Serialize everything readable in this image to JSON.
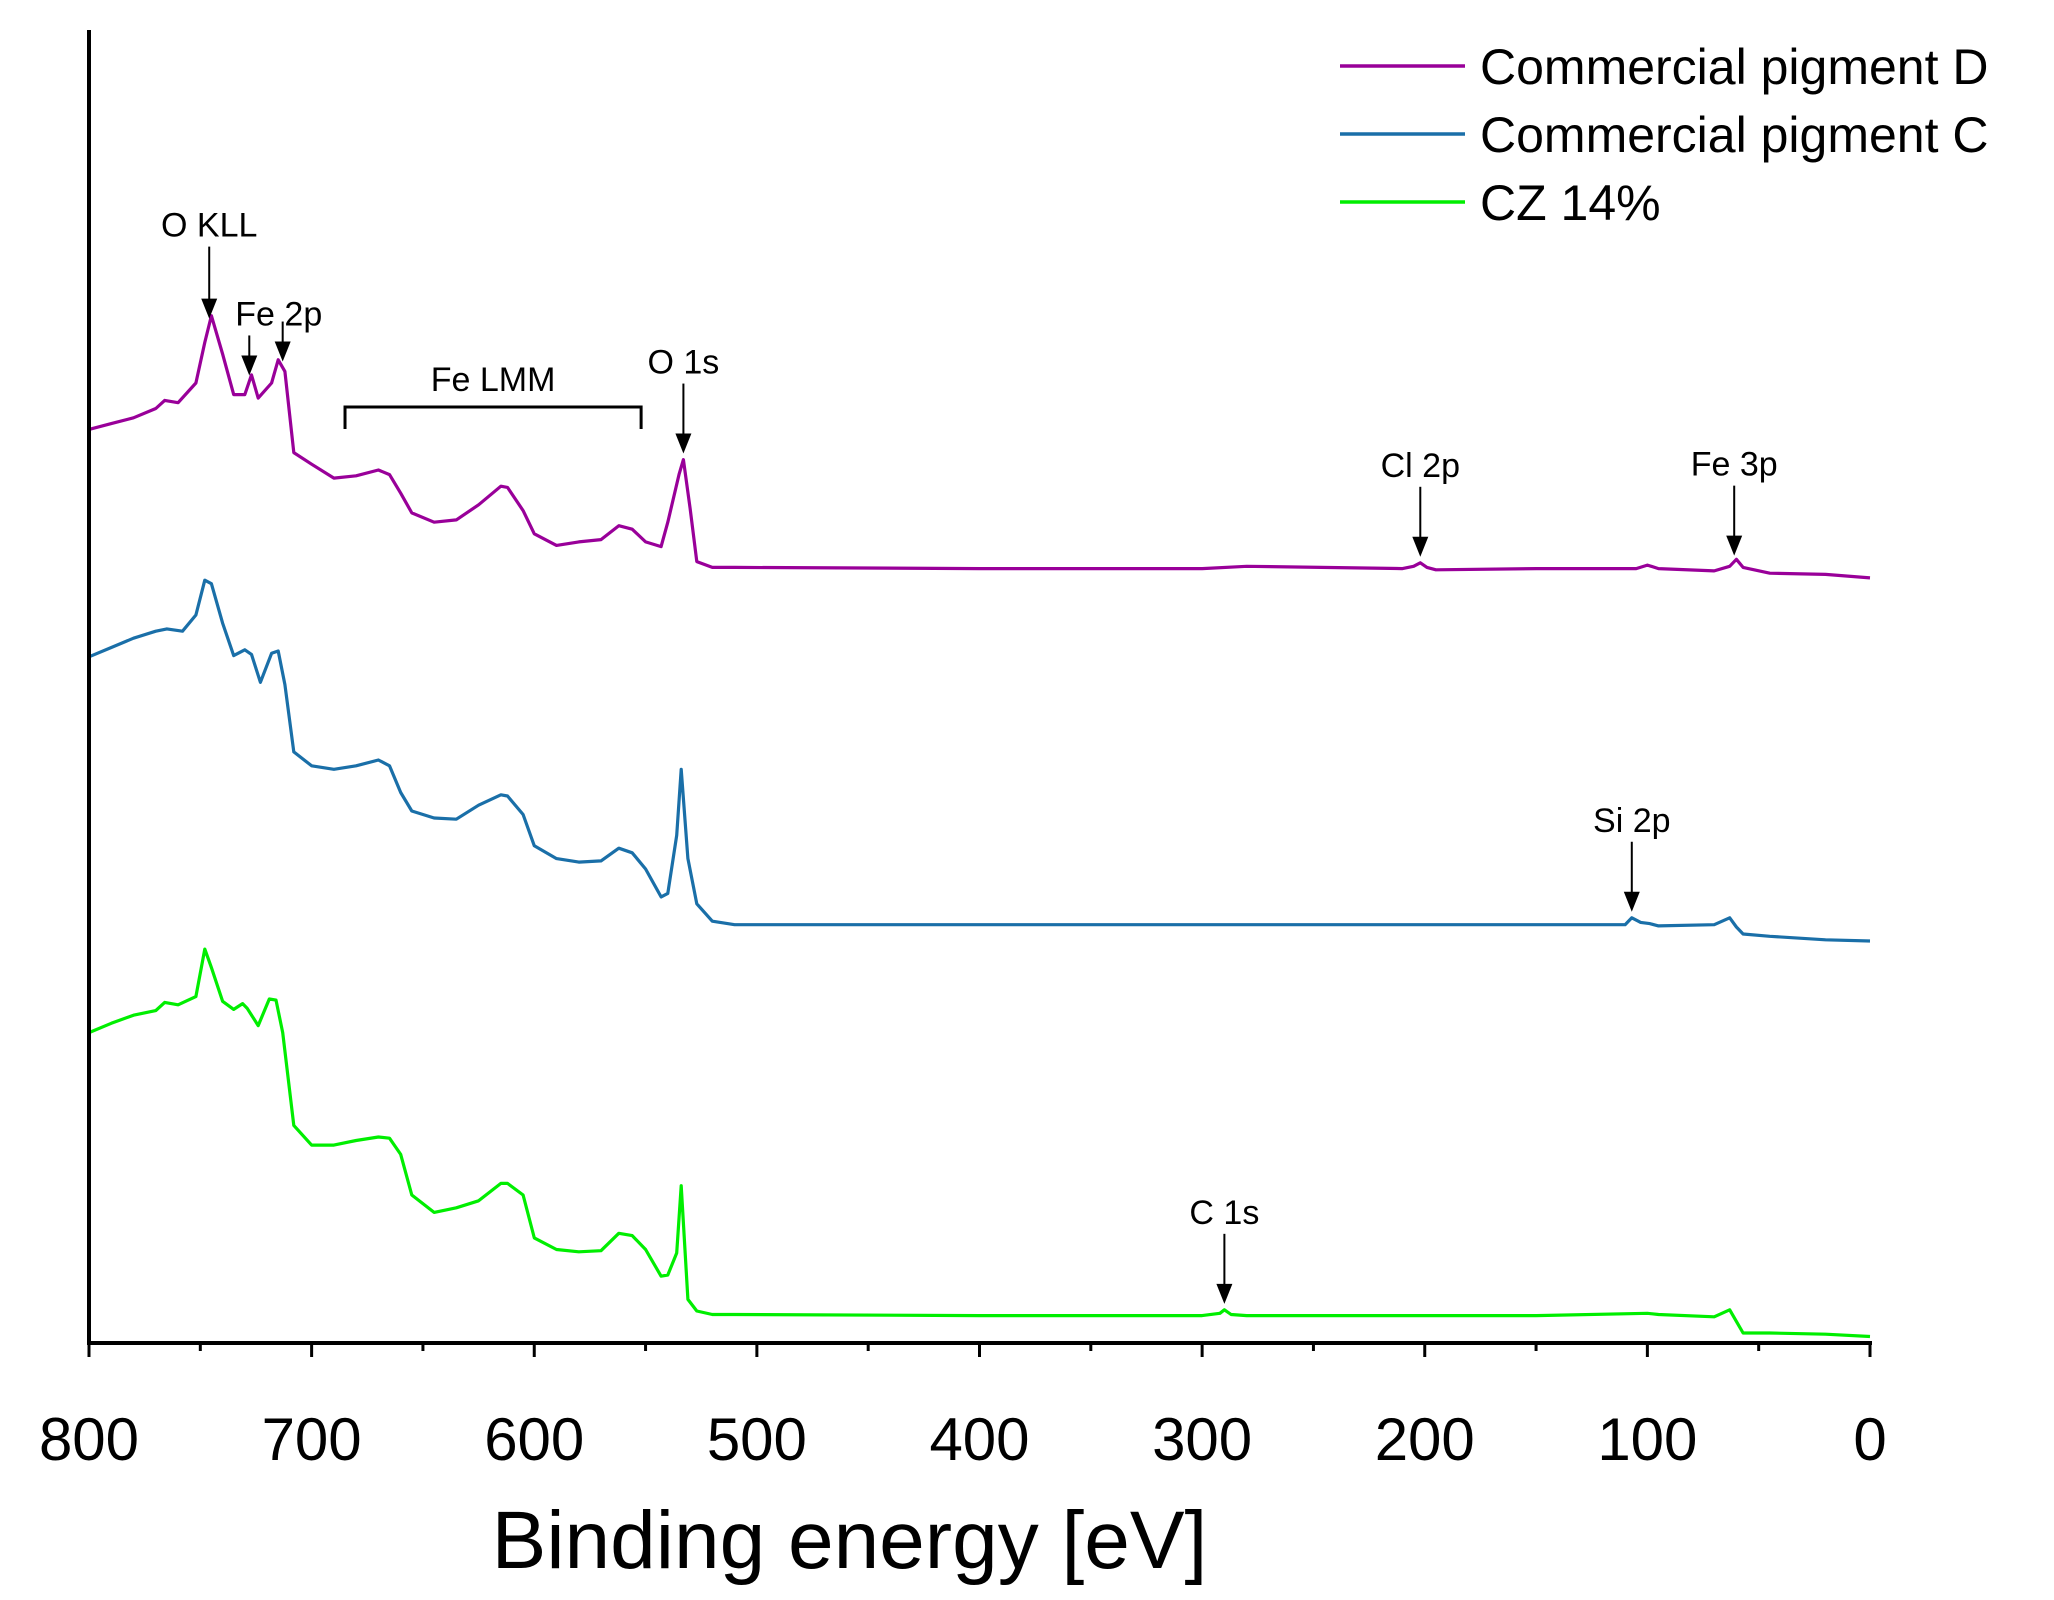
{
  "chart_data": {
    "type": "line",
    "title": "",
    "xlabel": "Binding energy [eV]",
    "ylabel": "",
    "xlim": [
      800,
      0
    ],
    "x_reversed": true,
    "xticks": [
      800,
      700,
      600,
      500,
      400,
      300,
      200,
      100,
      0
    ],
    "ylim": [
      0,
      100
    ],
    "y_axis_ticks": "none",
    "legend_position": "top-right",
    "series": [
      {
        "name": "Commercial pigment D",
        "color": "#990099",
        "x": [
          800,
          790,
          780,
          770,
          766,
          760,
          752,
          748,
          745,
          740,
          735,
          730,
          727,
          724,
          718,
          715,
          712,
          708,
          700,
          690,
          680,
          670,
          665,
          660,
          655,
          645,
          635,
          625,
          615,
          612,
          605,
          600,
          590,
          580,
          570,
          562,
          556,
          550,
          543,
          540,
          535,
          533,
          530,
          527,
          520,
          510,
          400,
          300,
          280,
          210,
          205,
          202,
          199,
          195,
          150,
          105,
          100,
          95,
          70,
          63,
          60,
          57,
          45,
          20,
          0
        ],
        "values": [
          78.5,
          79,
          79.5,
          80.3,
          81,
          80.8,
          82.5,
          86,
          88.3,
          85,
          81.5,
          81.5,
          83.2,
          81.2,
          82.5,
          84.5,
          83.5,
          76.5,
          75.5,
          74.3,
          74.5,
          75,
          74.6,
          73,
          71.3,
          70.5,
          70.7,
          72,
          73.6,
          73.5,
          71.5,
          69.5,
          68.5,
          68.8,
          69,
          70.2,
          69.9,
          68.8,
          68.4,
          70.5,
          74.6,
          75.9,
          71.7,
          67.1,
          66.6,
          66.6,
          66.5,
          66.5,
          66.7,
          66.5,
          66.7,
          67,
          66.6,
          66.4,
          66.5,
          66.5,
          66.8,
          66.5,
          66.3,
          66.7,
          67.3,
          66.6,
          66.1,
          66,
          65.7
        ]
      },
      {
        "name": "Commercial pigment C",
        "color": "#1A6FA8",
        "x": [
          800,
          790,
          780,
          770,
          765,
          758,
          752,
          748,
          745,
          740,
          735,
          730,
          727,
          723,
          718,
          715,
          712,
          708,
          700,
          690,
          680,
          670,
          665,
          660,
          655,
          645,
          635,
          625,
          615,
          612,
          605,
          600,
          590,
          580,
          570,
          562,
          556,
          550,
          543,
          540,
          536,
          534,
          531,
          527,
          520,
          510,
          400,
          300,
          200,
          150,
          110,
          107,
          103,
          99,
          95,
          70,
          63,
          60,
          57,
          45,
          20,
          0
        ],
        "values": [
          58.9,
          59.7,
          60.5,
          61.1,
          61.3,
          61.1,
          62.5,
          65.5,
          65.2,
          61.8,
          59,
          59.5,
          59.1,
          56.7,
          59.2,
          59.4,
          56.5,
          50.7,
          49.5,
          49.2,
          49.5,
          50,
          49.5,
          47.2,
          45.6,
          45,
          44.9,
          46.1,
          47,
          46.9,
          45.3,
          42.6,
          41.5,
          41.2,
          41.3,
          42.4,
          42,
          40.6,
          38.2,
          38.5,
          43.5,
          49.2,
          41.5,
          37.6,
          36.1,
          35.8,
          35.8,
          35.8,
          35.8,
          35.8,
          35.8,
          36.4,
          36,
          35.9,
          35.7,
          35.8,
          36.4,
          35.6,
          35,
          34.8,
          34.5,
          34.4
        ]
      },
      {
        "name": "CZ 14%",
        "color": "#00EE00",
        "x": [
          800,
          790,
          780,
          770,
          766,
          760,
          752,
          748,
          745,
          740,
          735,
          731,
          729,
          724,
          719,
          716,
          713,
          708,
          700,
          690,
          680,
          670,
          665,
          660,
          655,
          645,
          635,
          625,
          615,
          612,
          605,
          600,
          590,
          580,
          570,
          562,
          556,
          550,
          543,
          540,
          536,
          534,
          531,
          527,
          520,
          510,
          400,
          300,
          292,
          290,
          287,
          280,
          200,
          150,
          100,
          95,
          70,
          63,
          60,
          57,
          45,
          20,
          0
        ],
        "values": [
          26.5,
          27.3,
          28,
          28.4,
          29.1,
          28.9,
          29.6,
          33.7,
          32.1,
          29.2,
          28.5,
          29,
          28.6,
          27.1,
          29.4,
          29.3,
          26.5,
          18.5,
          16.8,
          16.8,
          17.2,
          17.5,
          17.4,
          16,
          12.5,
          11,
          11.4,
          12,
          13.5,
          13.5,
          12.5,
          8.8,
          7.8,
          7.6,
          7.7,
          9.2,
          9,
          7.8,
          5.5,
          5.6,
          7.5,
          13.3,
          3.5,
          2.5,
          2.2,
          2.2,
          2.1,
          2.1,
          2.3,
          2.6,
          2.2,
          2.1,
          2.1,
          2.1,
          2.3,
          2.2,
          2,
          2.6,
          1.6,
          0.6,
          0.6,
          0.5,
          0.3
        ]
      }
    ],
    "annotations": [
      {
        "text": "O KLL",
        "x": 746,
        "series": "Commercial pigment D",
        "arrow": true
      },
      {
        "text": "Fe 2p",
        "x": 728,
        "series": "Commercial pigment D",
        "arrow": true,
        "group": "fe2p"
      },
      {
        "text": "",
        "x": 713,
        "series": "Commercial pigment D",
        "arrow": true,
        "group": "fe2p"
      },
      {
        "text": "Fe LMM",
        "x_range": [
          685,
          552
        ],
        "series": "Commercial pigment D",
        "bracket": true
      },
      {
        "text": "O 1s",
        "x": 533,
        "series": "Commercial pigment D",
        "arrow": true
      },
      {
        "text": "Cl 2p",
        "x": 202,
        "series": "Commercial pigment D",
        "arrow": true
      },
      {
        "text": "Fe 3p",
        "x": 61,
        "series": "Commercial pigment D",
        "arrow": true
      },
      {
        "text": "Si 2p",
        "x": 107,
        "series": "Commercial pigment C",
        "arrow": true
      },
      {
        "text": "C 1s",
        "x": 290,
        "series": "CZ 14%",
        "arrow": true
      }
    ]
  }
}
